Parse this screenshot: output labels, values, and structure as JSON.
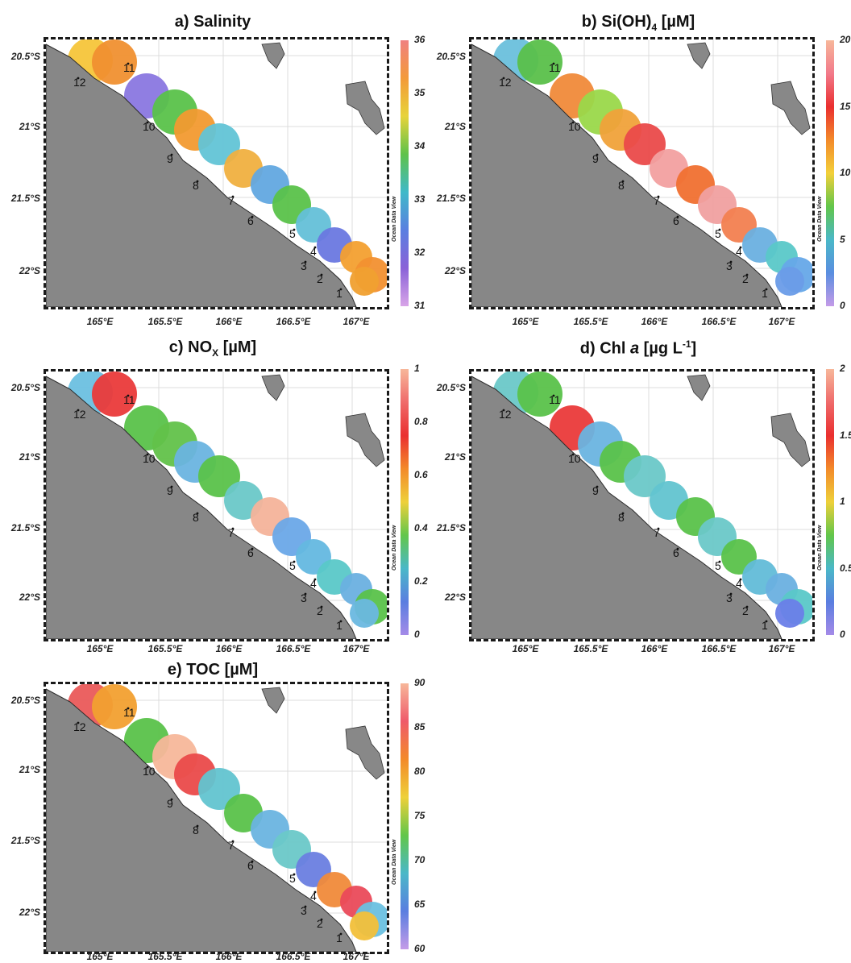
{
  "panels": [
    {
      "id": "a",
      "title": "a) Salinity",
      "colorbar": {
        "min": 31,
        "max": 36,
        "ticks": [
          "36",
          "35",
          "34",
          "33",
          "32",
          "31"
        ],
        "stops": [
          "#f08080",
          "#f39a3a",
          "#e7d33a",
          "#5ec24a",
          "#3fb9c9",
          "#5a7fe0",
          "#8a62d8",
          "#d8a4e8"
        ]
      },
      "blobs": [
        "#f6c53a",
        "#f09030",
        "#8a77e0",
        "#5ac24a",
        "#f29a30",
        "#62c4d6",
        "#f0b040",
        "#62a8e0",
        "#5ac24a",
        "#64c0d8",
        "#6a78e0",
        "#f3a030",
        "#f29030",
        "#f0a030"
      ]
    },
    {
      "id": "b",
      "title": "b) Si(OH)",
      "sub": "4",
      "title_after": " [µM]",
      "colorbar": {
        "min": 0,
        "max": 20,
        "ticks": [
          "20",
          "15",
          "10",
          "5",
          "0"
        ],
        "stops": [
          "#f7b79a",
          "#f27a8a",
          "#ea2f2f",
          "#f38a2a",
          "#f3d03a",
          "#62c64a",
          "#4ab8c8",
          "#5a8ee0",
          "#c49be8"
        ]
      },
      "blobs": [
        "#6ac0dc",
        "#5ac04a",
        "#f08a3a",
        "#9ad84a",
        "#f0a23a",
        "#ea4a4a",
        "#f2a0a0",
        "#f07030",
        "#f0a0a0",
        "#f28050",
        "#6ab0e0",
        "#5ac8c8",
        "#66a8e8",
        "#6a9ce8"
      ]
    },
    {
      "id": "c",
      "title": "c) NO",
      "sub": "X",
      "title_after": " [µM]",
      "colorbar": {
        "min": 0,
        "max": 1,
        "ticks": [
          "1",
          "0.8",
          "0.6",
          "0.4",
          "0.2",
          "0"
        ],
        "stops": [
          "#f7b79a",
          "#ef6a6a",
          "#ea2f2f",
          "#f38a2a",
          "#eed03a",
          "#62c64a",
          "#4ab8c8",
          "#5a7ee0",
          "#a48ae8"
        ]
      },
      "blobs": [
        "#6cc0e0",
        "#ea3a3a",
        "#5ac24a",
        "#62c24a",
        "#6ab4e0",
        "#5ac24a",
        "#6ac8c8",
        "#f4b39a",
        "#6aa8e8",
        "#64b8e0",
        "#5ac8c8",
        "#6ab0e0",
        "#5ac24a",
        "#6ab8e0"
      ]
    },
    {
      "id": "d",
      "title": "d) Chl ",
      "title_it": "a",
      "title_after": " [µg L",
      "sup": "-1",
      "title_end": "]",
      "colorbar": {
        "min": 0,
        "max": 2,
        "ticks": [
          "2",
          "1.5",
          "1",
          "0.5",
          "0"
        ],
        "stops": [
          "#f7b79a",
          "#ef6a6a",
          "#ea2f2f",
          "#f38a2a",
          "#eed03a",
          "#62c64a",
          "#4ab8c8",
          "#5a7ee0",
          "#a48ae8"
        ]
      },
      "blobs": [
        "#6ac8c8",
        "#5ac24a",
        "#ea3a3a",
        "#6ab4e0",
        "#5ac24a",
        "#6ac8c8",
        "#62c4d0",
        "#5ac24a",
        "#6ac8c8",
        "#5ac24a",
        "#62bcd8",
        "#6ab0e0",
        "#5ac8c8",
        "#6a7ee8"
      ]
    },
    {
      "id": "e",
      "title": "e) TOC [µM]",
      "colorbar": {
        "min": 60,
        "max": 90,
        "ticks": [
          "90",
          "85",
          "80",
          "75",
          "70",
          "65",
          "60"
        ],
        "stops": [
          "#f7b79a",
          "#ef5a6a",
          "#f38a2a",
          "#eed03a",
          "#62c64a",
          "#4ab8c8",
          "#5a7ee0",
          "#c49be8"
        ]
      },
      "blobs": [
        "#ea5a5a",
        "#f2a030",
        "#5ac24a",
        "#f7b79a",
        "#ea4a4a",
        "#62c4d0",
        "#5ac24a",
        "#6ab4e0",
        "#6ac8c8",
        "#6a7ee0",
        "#f08a3a",
        "#ea4a5a",
        "#6ac0e0",
        "#f2c03a"
      ]
    }
  ],
  "axes": {
    "lat_labels": [
      "20.5°S",
      "21°S",
      "21.5°S",
      "22°S"
    ],
    "lon_labels": [
      "165°E",
      "165.5°E",
      "166°E",
      "166.5°E",
      "167°E"
    ]
  },
  "stations": [
    "1",
    "2",
    "3",
    "4",
    "5",
    "6",
    "7",
    "8",
    "9",
    "10",
    "11",
    "12"
  ],
  "watermark": "Ocean Data View"
}
